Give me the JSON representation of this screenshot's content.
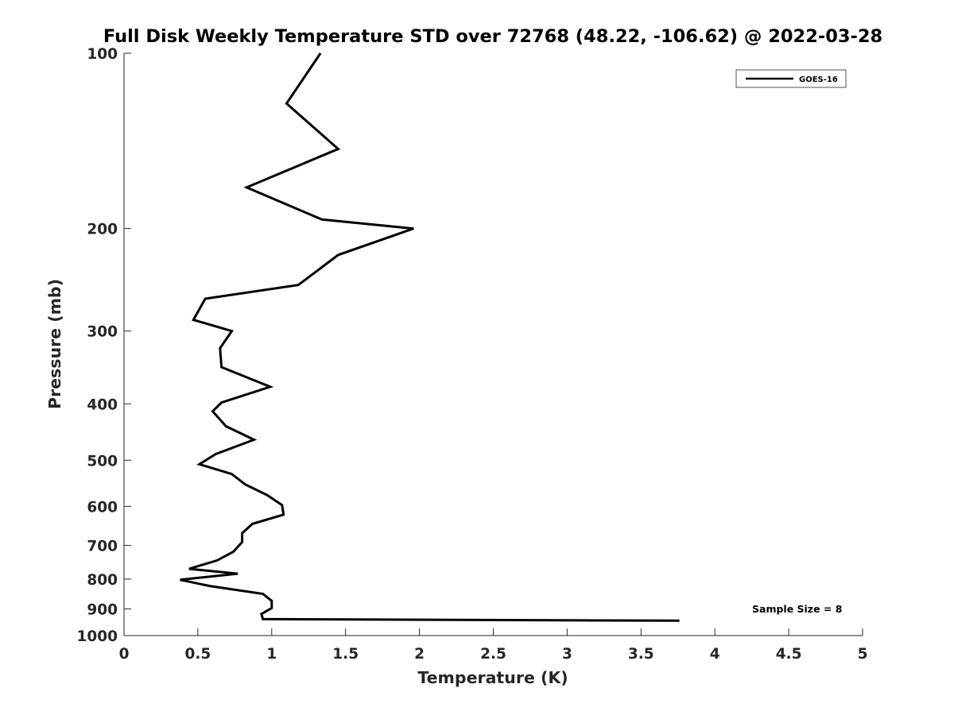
{
  "chart_data": {
    "type": "line",
    "title": "Full Disk Weekly Temperature STD over 72768 (48.22, -106.62) @ 2022-03-28",
    "xlabel": "Temperature (K)",
    "ylabel": "Pressure (mb)",
    "xlim": [
      0,
      5
    ],
    "ylim": [
      100,
      1000
    ],
    "y_scale": "log",
    "y_reversed": true,
    "x_ticks": [
      0,
      0.5,
      1,
      1.5,
      2,
      2.5,
      3,
      3.5,
      4,
      4.5,
      5
    ],
    "x_tick_labels": [
      "0",
      "0.5",
      "1",
      "1.5",
      "2",
      "2.5",
      "3",
      "3.5",
      "4",
      "4.5",
      "5"
    ],
    "y_ticks": [
      100,
      200,
      300,
      400,
      500,
      600,
      700,
      800,
      900,
      1000
    ],
    "y_tick_labels": [
      "100",
      "200",
      "300",
      "400",
      "500",
      "600",
      "700",
      "800",
      "900",
      "1000"
    ],
    "grid": false,
    "legend_position": "top-right",
    "series": [
      {
        "name": "GOES-16",
        "color": "#000000",
        "points": [
          [
            1.33,
            100
          ],
          [
            1.1,
            122
          ],
          [
            1.45,
            146
          ],
          [
            0.83,
            170
          ],
          [
            1.34,
            193
          ],
          [
            1.96,
            200
          ],
          [
            1.45,
            222
          ],
          [
            1.18,
            250
          ],
          [
            0.55,
            264
          ],
          [
            0.47,
            287
          ],
          [
            0.73,
            300
          ],
          [
            0.65,
            321
          ],
          [
            0.66,
            346
          ],
          [
            0.99,
            374
          ],
          [
            0.66,
            398
          ],
          [
            0.6,
            412
          ],
          [
            0.69,
            437
          ],
          [
            0.88,
            461
          ],
          [
            0.62,
            488
          ],
          [
            0.51,
            508
          ],
          [
            0.73,
            528
          ],
          [
            0.82,
            550
          ],
          [
            0.97,
            574
          ],
          [
            1.07,
            597
          ],
          [
            1.08,
            620
          ],
          [
            0.87,
            643
          ],
          [
            0.8,
            667
          ],
          [
            0.8,
            691
          ],
          [
            0.74,
            718
          ],
          [
            0.63,
            743
          ],
          [
            0.44,
            768
          ],
          [
            0.77,
            783
          ],
          [
            0.38,
            802
          ],
          [
            0.58,
            822
          ],
          [
            0.94,
            848
          ],
          [
            1.0,
            872
          ],
          [
            1.0,
            897
          ],
          [
            0.93,
            918
          ],
          [
            0.94,
            937
          ],
          [
            3.76,
            943
          ]
        ]
      }
    ],
    "annotations": [
      "Sample Size = 8"
    ]
  }
}
